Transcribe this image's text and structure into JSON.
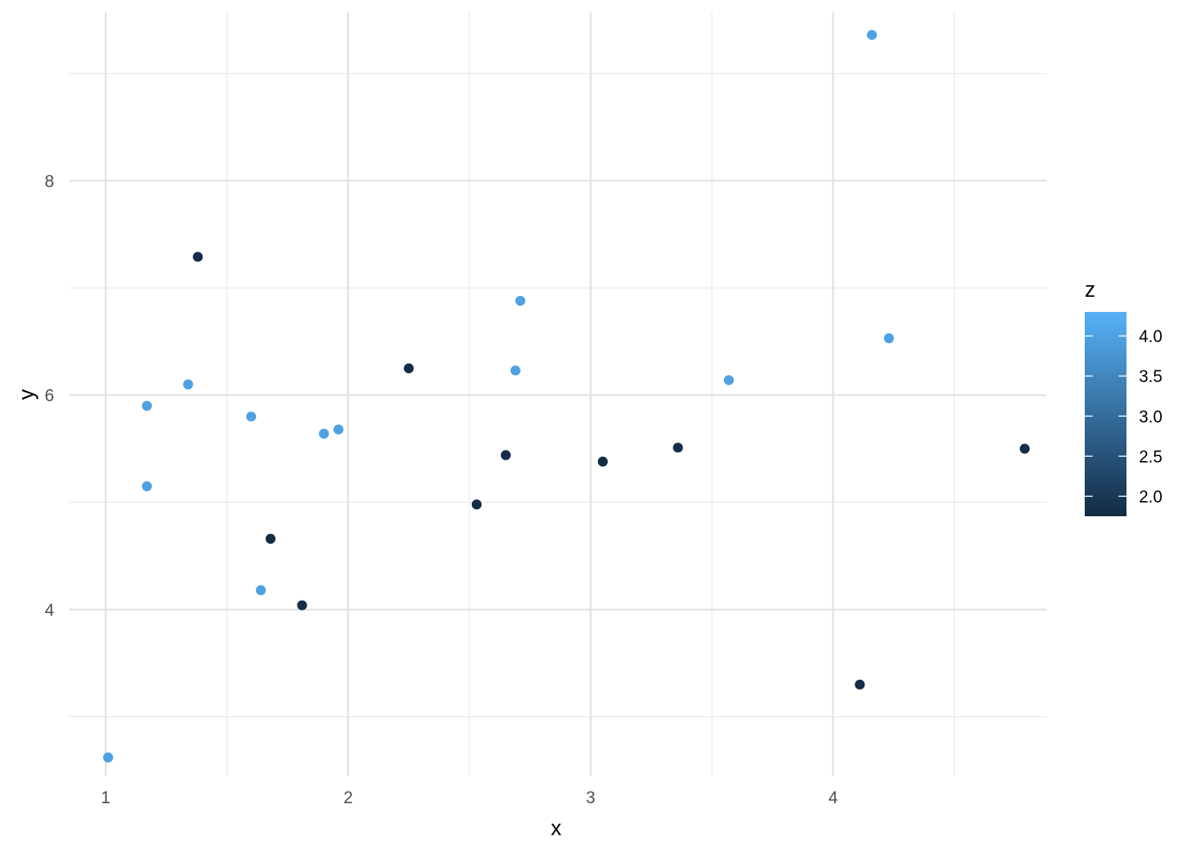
{
  "chart_data": {
    "type": "scatter",
    "xlabel": "x",
    "ylabel": "y",
    "xlim": [
      0.85,
      4.88
    ],
    "ylim": [
      2.45,
      9.57
    ],
    "x_ticks": [
      1,
      2,
      3,
      4
    ],
    "x_minor": [
      1.5,
      2.5,
      3.5,
      4.5
    ],
    "y_ticks": [
      4,
      6,
      8
    ],
    "y_minor": [
      3,
      5,
      7,
      9
    ],
    "grid": true,
    "color_scale": {
      "name": "z",
      "min": 1.75,
      "max": 4.3,
      "low_color": "#132B43",
      "high_color": "#56B1F7",
      "ticks": [
        2.0,
        2.5,
        3.0,
        3.5,
        4.0
      ],
      "tick_labels": [
        "2.0",
        "2.5",
        "3.0",
        "3.5",
        "4.0"
      ]
    },
    "points": [
      {
        "x": 1.01,
        "y": 2.62,
        "z": 4.0
      },
      {
        "x": 1.17,
        "y": 5.9,
        "z": 4.0
      },
      {
        "x": 1.17,
        "y": 5.15,
        "z": 4.0
      },
      {
        "x": 1.34,
        "y": 6.1,
        "z": 4.0
      },
      {
        "x": 1.38,
        "y": 7.29,
        "z": 1.8
      },
      {
        "x": 1.6,
        "y": 5.8,
        "z": 4.0
      },
      {
        "x": 1.64,
        "y": 4.18,
        "z": 4.0
      },
      {
        "x": 1.68,
        "y": 4.66,
        "z": 1.8
      },
      {
        "x": 1.81,
        "y": 4.04,
        "z": 1.8
      },
      {
        "x": 1.9,
        "y": 5.64,
        "z": 4.0
      },
      {
        "x": 1.96,
        "y": 5.68,
        "z": 4.0
      },
      {
        "x": 2.25,
        "y": 6.25,
        "z": 1.8
      },
      {
        "x": 2.53,
        "y": 4.98,
        "z": 1.8
      },
      {
        "x": 2.65,
        "y": 5.44,
        "z": 1.8
      },
      {
        "x": 2.69,
        "y": 6.23,
        "z": 4.0
      },
      {
        "x": 2.71,
        "y": 6.88,
        "z": 4.0
      },
      {
        "x": 3.05,
        "y": 5.38,
        "z": 1.8
      },
      {
        "x": 3.36,
        "y": 5.51,
        "z": 1.8
      },
      {
        "x": 3.57,
        "y": 6.14,
        "z": 4.0
      },
      {
        "x": 4.11,
        "y": 3.3,
        "z": 1.8
      },
      {
        "x": 4.16,
        "y": 9.36,
        "z": 4.0
      },
      {
        "x": 4.23,
        "y": 6.53,
        "z": 4.0
      },
      {
        "x": 4.79,
        "y": 5.5,
        "z": 1.8
      }
    ]
  }
}
